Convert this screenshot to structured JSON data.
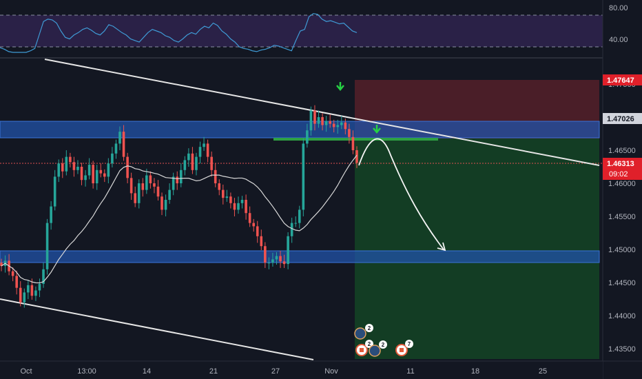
{
  "chart_data": {
    "type": "candlestick",
    "x_tick_labels": [
      "Oct",
      "13:00",
      "14",
      "21",
      "27",
      "Nov",
      "11",
      "18",
      "25"
    ],
    "y_tick_labels": [
      "1.47500",
      "1.46500",
      "1.46000",
      "1.45500",
      "1.45000",
      "1.44500",
      "1.44000",
      "1.43500"
    ],
    "ylim": [
      1.4305,
      1.4795
    ],
    "grid": false,
    "price_tags": {
      "stop": "1.47647",
      "entry": "1.47026",
      "last": "1.46313",
      "countdown": "09:02"
    },
    "zones": {
      "resistance": [
        1.4682,
        1.4705
      ],
      "support": [
        1.4475,
        1.4492
      ],
      "target_line": 1.467
    },
    "candles_close": [
      1.4475,
      1.4483,
      1.4467,
      1.446,
      1.4442,
      1.442,
      1.4435,
      1.4446,
      1.443,
      1.4438,
      1.4448,
      1.447,
      1.454,
      1.4565,
      1.461,
      1.463,
      1.4618,
      1.464,
      1.4632,
      1.462,
      1.4625,
      1.4605,
      1.4612,
      1.4628,
      1.46,
      1.462,
      1.4615,
      1.461,
      1.463,
      1.4645,
      1.466,
      1.4678,
      1.464,
      1.4608,
      1.4585,
      1.457,
      1.46,
      1.459,
      1.4612,
      1.46,
      1.4595,
      1.458,
      1.456,
      1.4575,
      1.459,
      1.461,
      1.46,
      1.462,
      1.4635,
      1.4645,
      1.462,
      1.464,
      1.4655,
      1.466,
      1.464,
      1.462,
      1.46,
      1.459,
      1.4578,
      1.458,
      1.457,
      1.456,
      1.457,
      1.4575,
      1.4555,
      1.454,
      1.4535,
      1.452,
      1.4505,
      1.448,
      1.448,
      1.4485,
      1.449,
      1.4482,
      1.4478,
      1.452,
      1.454,
      1.454,
      1.456,
      1.466,
      1.468,
      1.471,
      1.469,
      1.47,
      1.4688,
      1.4694,
      1.469,
      1.4685,
      1.4688,
      1.4692,
      1.4682,
      1.467,
      1.465,
      1.4631
    ],
    "rsi": {
      "levels": [
        "80.00",
        "40.00"
      ],
      "values": [
        39,
        37,
        34,
        32,
        33,
        30,
        31,
        35,
        38,
        55,
        72,
        75,
        74,
        70,
        60,
        52,
        50,
        55,
        58,
        62,
        64,
        61,
        57,
        55,
        60,
        68,
        66,
        62,
        58,
        55,
        50,
        48,
        46,
        52,
        58,
        62,
        60,
        58,
        54,
        52,
        48,
        46,
        50,
        55,
        58,
        56,
        62,
        66,
        64,
        70,
        67,
        60,
        56,
        50,
        46,
        40,
        38,
        37,
        35,
        34,
        36,
        37,
        39,
        42,
        41,
        39,
        37,
        35,
        48,
        60,
        62,
        78,
        82,
        81,
        75,
        72,
        73,
        71,
        69,
        70,
        65,
        60,
        58
      ]
    },
    "events": [
      {
        "count": "2"
      },
      {
        "count": "2"
      },
      {
        "count": "2"
      },
      {
        "count": "7"
      }
    ]
  }
}
